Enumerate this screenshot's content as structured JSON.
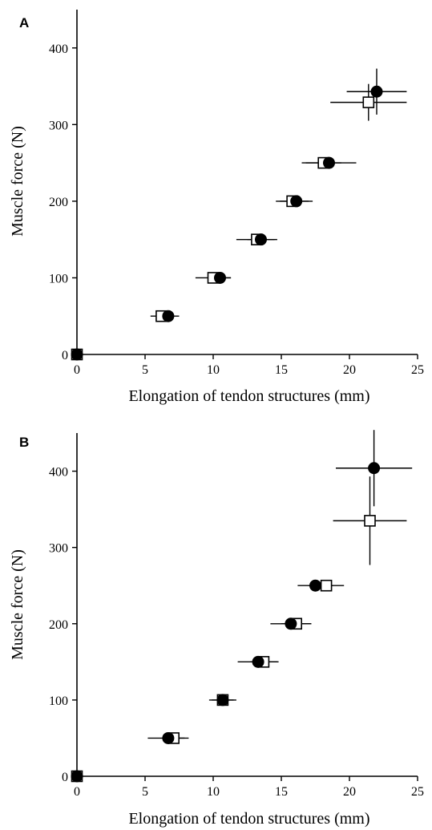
{
  "chart_data": [
    {
      "panel": "A",
      "type": "scatter",
      "xlabel": "Elongation of tendon structures (mm)",
      "ylabel": "Muscle force (N)",
      "xlim": [
        0,
        25
      ],
      "ylim": [
        0,
        450
      ],
      "xticks": [
        0,
        5,
        10,
        15,
        20,
        25
      ],
      "yticks": [
        0,
        100,
        200,
        300,
        400
      ],
      "grid": false,
      "series": [
        {
          "marker": "filled-circle",
          "points": [
            {
              "x": 0,
              "y": 0,
              "xerr": 0,
              "yerr": 0
            },
            {
              "x": 6.7,
              "y": 50,
              "xerr": 0.8,
              "yerr": 0
            },
            {
              "x": 10.5,
              "y": 100,
              "xerr": 0.8,
              "yerr": 0
            },
            {
              "x": 13.5,
              "y": 150,
              "xerr": 1.0,
              "yerr": 0
            },
            {
              "x": 16.1,
              "y": 200,
              "xerr": 1.2,
              "yerr": 0
            },
            {
              "x": 18.5,
              "y": 250,
              "xerr": 2.0,
              "yerr": 0
            },
            {
              "x": 22.0,
              "y": 343,
              "xerr": 2.2,
              "yerr": 30
            }
          ]
        },
        {
          "marker": "open-square",
          "points": [
            {
              "x": 0,
              "y": 0,
              "xerr": 0,
              "yerr": 0
            },
            {
              "x": 6.2,
              "y": 50,
              "xerr": 0.8,
              "yerr": 0
            },
            {
              "x": 10.0,
              "y": 100,
              "xerr": 1.3,
              "yerr": 0
            },
            {
              "x": 13.2,
              "y": 150,
              "xerr": 1.5,
              "yerr": 0
            },
            {
              "x": 15.8,
              "y": 200,
              "xerr": 1.2,
              "yerr": 0
            },
            {
              "x": 18.1,
              "y": 250,
              "xerr": 1.3,
              "yerr": 0
            },
            {
              "x": 21.4,
              "y": 329,
              "xerr": 2.8,
              "yerr": 24
            }
          ]
        }
      ]
    },
    {
      "panel": "B",
      "type": "scatter",
      "xlabel": "Elongation of tendon structures (mm)",
      "ylabel": "Muscle force (N)",
      "xlim": [
        0,
        25
      ],
      "ylim": [
        0,
        450
      ],
      "xticks": [
        0,
        5,
        10,
        15,
        20,
        25
      ],
      "yticks": [
        0,
        100,
        200,
        300,
        400
      ],
      "grid": false,
      "series": [
        {
          "marker": "filled-circle",
          "points": [
            {
              "x": 0,
              "y": 0,
              "xerr": 0,
              "yerr": 0
            },
            {
              "x": 6.7,
              "y": 50,
              "xerr": 1.5,
              "yerr": 0
            },
            {
              "x": 10.7,
              "y": 100,
              "xerr": 1.0,
              "yerr": 0
            },
            {
              "x": 13.3,
              "y": 150,
              "xerr": 1.5,
              "yerr": 0
            },
            {
              "x": 15.7,
              "y": 200,
              "xerr": 1.5,
              "yerr": 0
            },
            {
              "x": 17.5,
              "y": 250,
              "xerr": 1.3,
              "yerr": 0
            },
            {
              "x": 21.8,
              "y": 404,
              "xerr": 2.8,
              "yerr": 50
            }
          ]
        },
        {
          "marker": "open-square",
          "points": [
            {
              "x": 0,
              "y": 0,
              "xerr": 0,
              "yerr": 0
            },
            {
              "x": 7.1,
              "y": 50,
              "xerr": 0.8,
              "yerr": 0
            },
            {
              "x": 10.7,
              "y": 100,
              "xerr": 0.8,
              "yerr": 0
            },
            {
              "x": 13.7,
              "y": 150,
              "xerr": 1.0,
              "yerr": 0
            },
            {
              "x": 16.1,
              "y": 200,
              "xerr": 1.1,
              "yerr": 0
            },
            {
              "x": 18.3,
              "y": 250,
              "xerr": 1.3,
              "yerr": 0
            },
            {
              "x": 21.5,
              "y": 335,
              "xerr": 2.7,
              "yerr": 58
            }
          ]
        }
      ]
    }
  ]
}
